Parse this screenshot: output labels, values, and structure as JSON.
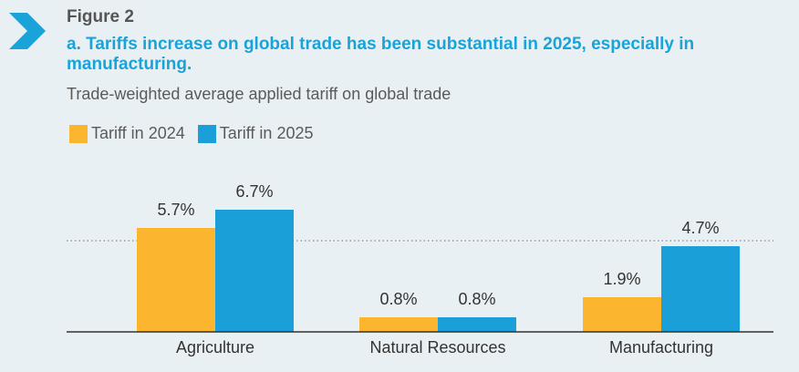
{
  "figure_label": "Figure 2",
  "title": "a. Tariffs increase on global trade has been substantial in 2025, especially in manufacturing.",
  "subtitle": "Trade-weighted average applied tariff on global trade",
  "colors": {
    "series_2024": "#fbb52e",
    "series_2025": "#1b9fd9",
    "accent": "#1aa3d9",
    "background": "#e9f0f3"
  },
  "chart_data": {
    "type": "bar",
    "title": "a. Tariffs increase on global trade has been substantial in 2025, especially in manufacturing.",
    "subtitle": "Trade-weighted average applied tariff on global trade",
    "categories": [
      "Agriculture",
      "Natural Resources",
      "Manufacturing"
    ],
    "series": [
      {
        "name": "Tariff in 2024",
        "values": [
          5.7,
          0.8,
          1.9
        ],
        "labels": [
          "5.7%",
          "0.8%",
          "1.9%"
        ],
        "color": "#fbb52e"
      },
      {
        "name": "Tariff in 2025",
        "values": [
          6.7,
          0.8,
          4.7
        ],
        "labels": [
          "6.7%",
          "0.8%",
          "4.7%"
        ],
        "color": "#1b9fd9"
      }
    ],
    "reference_line": {
      "value": 5.0,
      "style": "dotted"
    },
    "ylim": [
      0,
      8
    ],
    "legend": "top-left",
    "grid": false,
    "xlabel": "",
    "ylabel": ""
  }
}
